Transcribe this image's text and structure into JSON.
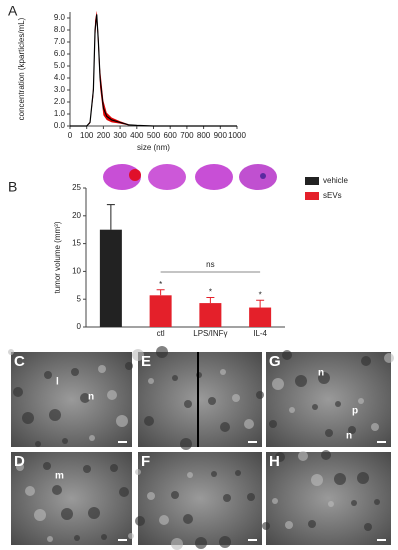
{
  "chart_data": [
    {
      "type": "line",
      "panel_label": "A",
      "x_label": "size (nm)",
      "y_label": "concentration (kparticles/mL)",
      "x": [
        0,
        50,
        100,
        120,
        140,
        150,
        160,
        170,
        180,
        200,
        220,
        250,
        300,
        350,
        400,
        500,
        600,
        1000
      ],
      "values": [
        0,
        0,
        0,
        0.3,
        3,
        8,
        9.3,
        7,
        4,
        1.5,
        0.8,
        0.5,
        0.3,
        0.1,
        0.05,
        0,
        0,
        0
      ],
      "errors": [
        0,
        0,
        0,
        0.1,
        0.5,
        0.8,
        0.3,
        0.7,
        0.8,
        0.6,
        0.3,
        0.2,
        0.1,
        0.05,
        0,
        0,
        0,
        0
      ],
      "color": "#000000",
      "band_color": "#e00000",
      "xlim": [
        0,
        1000
      ],
      "xticks": [
        0,
        100,
        200,
        300,
        400,
        500,
        600,
        700,
        800,
        900,
        1000
      ],
      "ylim": [
        0,
        9.5
      ],
      "yticks": [
        {
          "value": 0,
          "label": "0.0"
        },
        {
          "value": 1,
          "label": "1.0"
        },
        {
          "value": 2,
          "label": "2.0"
        },
        {
          "value": 3,
          "label": "3.0"
        },
        {
          "value": 4,
          "label": "4.0"
        },
        {
          "value": 5,
          "label": "5.0"
        },
        {
          "value": 6,
          "label": "6.0"
        },
        {
          "value": 7,
          "label": "7.0"
        },
        {
          "value": 8,
          "label": "8.0"
        },
        {
          "value": 9,
          "label": "9.0"
        }
      ]
    },
    {
      "type": "bar",
      "panel_label": "B",
      "y_label": "tumor volume (mm³)",
      "categories": [
        null,
        "ctl",
        "LPS/INFγ",
        "IL-4"
      ],
      "series": [
        {
          "name": "vehicle",
          "color": "#222222",
          "values": [
            17.5,
            null,
            null,
            null
          ],
          "errors": [
            4.5,
            null,
            null,
            null
          ]
        },
        {
          "name": "sEVs",
          "color": "#e4202a",
          "values": [
            null,
            5.7,
            4.3,
            3.5
          ],
          "errors": [
            null,
            1,
            1,
            1.3
          ]
        }
      ],
      "significance": [
        null,
        "*",
        "*",
        "*"
      ],
      "bracket_label": "ns",
      "ylim": [
        0,
        25
      ],
      "yticks": [
        0,
        5,
        10,
        15,
        20,
        25
      ]
    }
  ],
  "panels": [
    {
      "label": "C",
      "notes": [
        "l",
        "n"
      ]
    },
    {
      "label": "E",
      "notes": []
    },
    {
      "label": "G",
      "notes": [
        "n",
        "p",
        "n"
      ]
    },
    {
      "label": "D",
      "notes": [
        "m"
      ]
    },
    {
      "label": "F",
      "notes": []
    },
    {
      "label": "H",
      "notes": []
    }
  ]
}
